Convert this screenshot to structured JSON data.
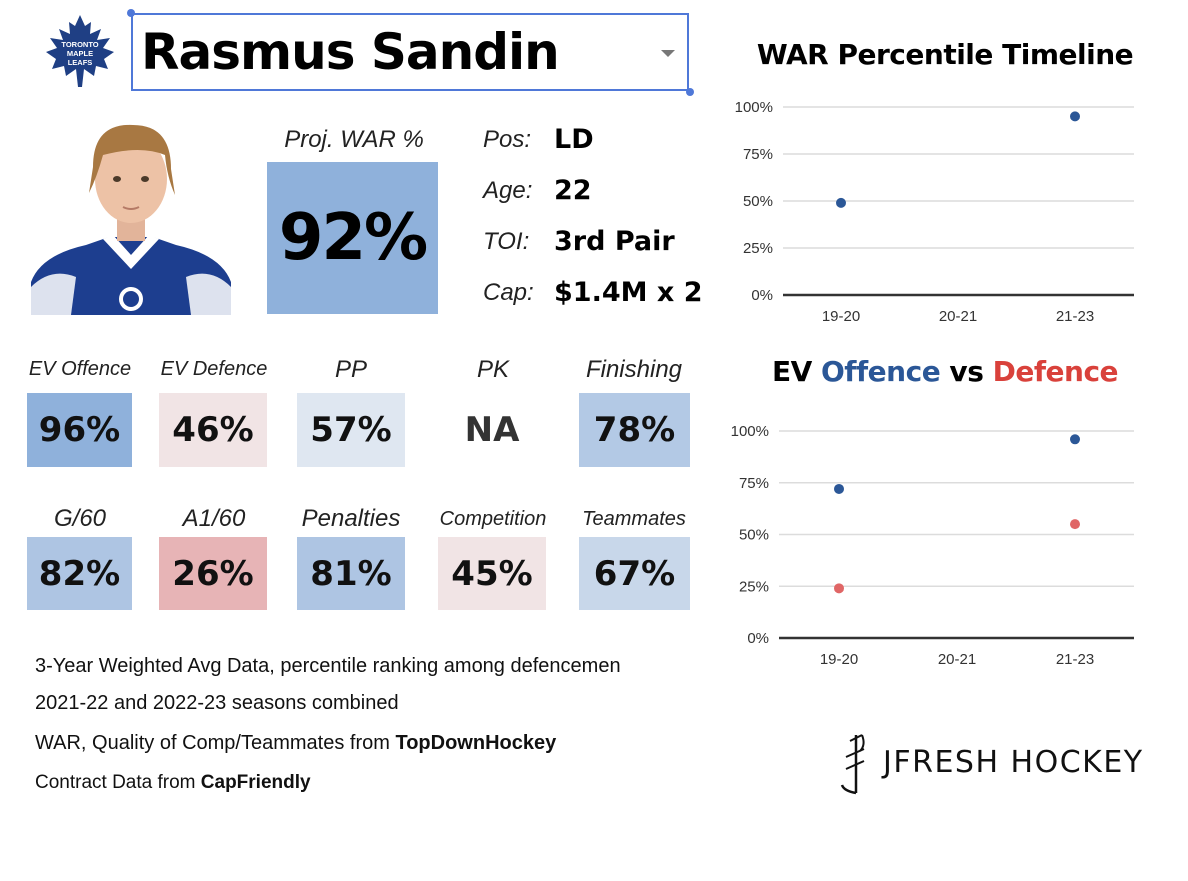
{
  "team_logo": {
    "line1": "TORONTO",
    "line2": "MAPLE",
    "line3": "LEAFS",
    "color": "#1f3f84"
  },
  "player": {
    "name": "Rasmus Sandin"
  },
  "projection": {
    "label": "Proj. WAR %",
    "value": "92%"
  },
  "info": [
    {
      "label": "Pos:",
      "value": "LD"
    },
    {
      "label": "Age:",
      "value": "22"
    },
    {
      "label": "TOI:",
      "value": "3rd Pair"
    },
    {
      "label": "Cap:",
      "value": "$1.4M x 2"
    }
  ],
  "stats_row1": [
    {
      "label": "EV Offence",
      "value": "96%",
      "color": "#8fb1db"
    },
    {
      "label": "EV Defence",
      "value": "46%",
      "color": "#f1e4e5"
    },
    {
      "label": "PP",
      "value": "57%",
      "color": "#dfe7f1"
    },
    {
      "label": "PK",
      "value": "NA",
      "color": "#ffffff"
    },
    {
      "label": "Finishing",
      "value": "78%",
      "color": "#b3c9e5"
    }
  ],
  "stats_row2": [
    {
      "label": "G/60",
      "value": "82%",
      "color": "#aec5e3"
    },
    {
      "label": "A1/60",
      "value": "26%",
      "color": "#e7b4b6"
    },
    {
      "label": "Penalties",
      "value": "81%",
      "color": "#aec5e3"
    },
    {
      "label": "Competition",
      "value": "45%",
      "color": "#f1e4e5"
    },
    {
      "label": "Teammates",
      "value": "67%",
      "color": "#c8d7ea"
    }
  ],
  "notes": {
    "line1": "3-Year Weighted Avg Data, percentile ranking among defencemen",
    "line2": "2021-22 and 2022-23 seasons combined",
    "line3_prefix": "WAR, Quality of Comp/Teammates from ",
    "line3_bold": "TopDownHockey",
    "line4_prefix": "Contract Data from ",
    "line4_bold": "CapFriendly"
  },
  "brand": {
    "text": "JFRESH HOCKEY"
  },
  "chart_data": [
    {
      "type": "scatter",
      "title": "WAR Percentile Timeline",
      "categories": [
        "19-20",
        "20-21",
        "21-23"
      ],
      "series": [
        {
          "values": [
            49,
            null,
            95
          ],
          "color": "#2b5797"
        }
      ],
      "ylim": [
        0,
        100
      ],
      "yticks": [
        "0%",
        "25%",
        "50%",
        "75%",
        "100%"
      ],
      "grid": true
    },
    {
      "type": "scatter",
      "title_parts": [
        {
          "text": "EV ",
          "color": "#000000"
        },
        {
          "text": "Offence",
          "color": "#2b5797"
        },
        {
          "text": " vs ",
          "color": "#000000"
        },
        {
          "text": "Defence",
          "color": "#d9413b"
        }
      ],
      "categories": [
        "19-20",
        "20-21",
        "21-23"
      ],
      "series": [
        {
          "values": [
            72,
            null,
            96
          ],
          "color": "#2b5797"
        },
        {
          "values": [
            24,
            null,
            55
          ],
          "color": "#e06666"
        }
      ],
      "ylim": [
        0,
        100
      ],
      "yticks": [
        "0%",
        "25%",
        "50%",
        "75%",
        "100%"
      ],
      "grid": true
    }
  ]
}
